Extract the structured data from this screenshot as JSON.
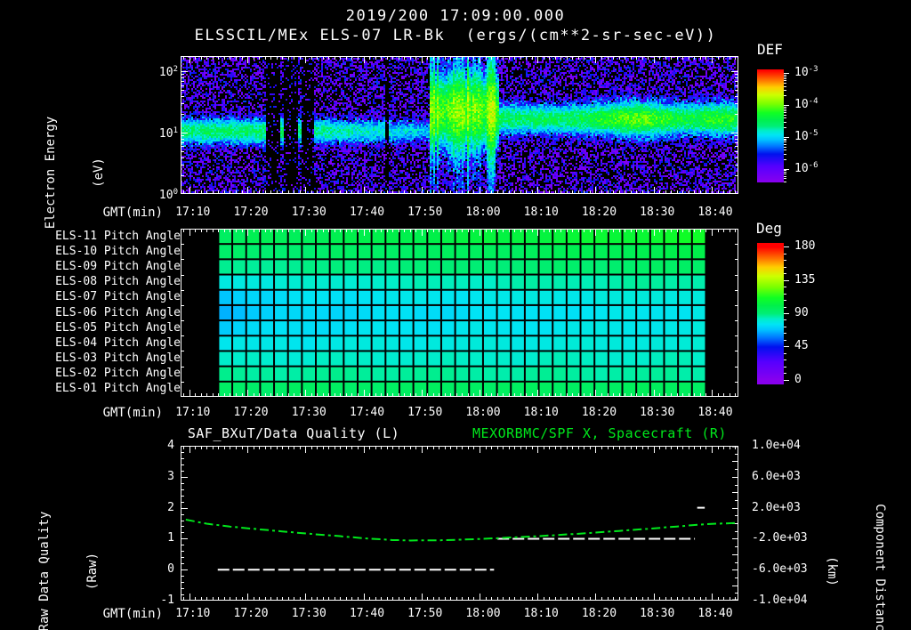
{
  "title": {
    "line1": "2019/200 17:09:00.000",
    "line2": "ELSSCIL/MEx ELS-07 LR-Bk  (ergs/(cm**2-sr-sec-eV))"
  },
  "colors": {
    "background": "#000000",
    "text": "#ffffff",
    "accent_green": "#00e81c",
    "colormap_stops": [
      [
        0.0,
        "#8800ee"
      ],
      [
        0.14,
        "#5500ff"
      ],
      [
        0.25,
        "#0011ee"
      ],
      [
        0.32,
        "#0077ff"
      ],
      [
        0.38,
        "#00c4ff"
      ],
      [
        0.42,
        "#00e4f4"
      ],
      [
        0.46,
        "#00eec8"
      ],
      [
        0.5,
        "#00ee77"
      ],
      [
        0.56,
        "#00f04a"
      ],
      [
        0.62,
        "#11ff22"
      ],
      [
        0.7,
        "#7aff00"
      ],
      [
        0.78,
        "#ccff00"
      ],
      [
        0.85,
        "#ffcc00"
      ],
      [
        0.91,
        "#ff7700"
      ],
      [
        1.0,
        "#ff0000"
      ]
    ]
  },
  "time_axis": {
    "label": "GMT(min)",
    "start_min": 8.5,
    "end_min": 104.6,
    "minor_step_min": 1,
    "tick_minutes": [
      10,
      20,
      30,
      40,
      50,
      60,
      70,
      80,
      90,
      100
    ],
    "tick_labels": [
      "17:10",
      "17:20",
      "17:30",
      "17:40",
      "17:50",
      "18:00",
      "18:10",
      "18:20",
      "18:30",
      "18:40"
    ]
  },
  "spectrogram_panel": {
    "ylabel_line1": "Electron Energy",
    "ylabel_line2": "(eV)",
    "yticks": [
      {
        "base": "10",
        "exp": "2",
        "log": 2
      },
      {
        "base": "10",
        "exp": "1",
        "log": 1
      },
      {
        "base": "10",
        "exp": "0",
        "log": 0
      }
    ],
    "colorbar_title": "DEF",
    "colorbar_ticks": [
      {
        "base": "10",
        "exp": "-3"
      },
      {
        "base": "10",
        "exp": "-4"
      },
      {
        "base": "10",
        "exp": "-5"
      },
      {
        "base": "10",
        "exp": "-6"
      }
    ]
  },
  "pitch_panel": {
    "colorbar_title": "Deg",
    "colorbar_ticks": [
      "180",
      "135",
      "90",
      "45",
      "0"
    ],
    "colorbar_values": [
      180,
      135,
      90,
      45,
      0
    ]
  },
  "bottom_panel": {
    "title_left": "SAF_BXuT/Data Quality (L)",
    "title_right": "MEXORBMC/SPF X, Spacecraft (R)",
    "ylabel_left_line1": "Raw Data Quality",
    "ylabel_left_line2": "(Raw)",
    "yticks_left": [
      "4",
      "3",
      "2",
      "1",
      "0",
      "-1"
    ],
    "yticks_left_values": [
      4,
      3,
      2,
      1,
      0,
      -1
    ],
    "ylabel_right_line1": "Component Distance",
    "ylabel_right_line2": "(km)",
    "yticks_right": [
      "1.0e+04",
      "6.0e+03",
      "2.0e+03",
      "-2.0e+03",
      "-6.0e+03",
      "-1.0e+04"
    ],
    "yticks_right_values": [
      10000,
      6000,
      2000,
      -2000,
      -6000,
      -10000
    ]
  },
  "chart_data": [
    {
      "type": "heatmap",
      "id": "electron_energy_spectrogram",
      "title": "ELSSCIL/MEx ELS-07 LR-Bk",
      "units": "ergs/(cm**2-sr-sec-eV)",
      "x_axis": {
        "label": "GMT(min)",
        "range_min": [
          8.5,
          104.6
        ]
      },
      "y_axis": {
        "label": "Electron Energy (eV)",
        "scale": "log",
        "range_eV": [
          1,
          178
        ]
      },
      "color_axis": {
        "label": "DEF",
        "range": [
          1e-06,
          0.001
        ]
      },
      "bands": [
        {
          "name": "low_energy_band",
          "t_range_min": [
            8.5,
            64
          ],
          "logE_center": 1.02,
          "logE_sigma": 0.23,
          "peak_log10_def": -4.55,
          "fade_to": -5.7
        },
        {
          "name": "injection_blob",
          "t_range_min": [
            51.5,
            63.5
          ],
          "logE_center": 1.35,
          "logE_sigma": 0.55,
          "peak_log10_def": -3.95
        },
        {
          "name": "main_band",
          "t_range_min": [
            63,
            104.6
          ],
          "logE_center": 1.22,
          "logE_sigma": 0.26,
          "base_log10_def": -4.5,
          "bright_t_center": 87,
          "bright_boost": 0.45,
          "edge_t_center": 101.5,
          "edge_boost": 0.3
        }
      ],
      "gaps_min": [
        [
          23.1,
          25.6
        ],
        [
          26.2,
          28.6
        ],
        [
          29.3,
          31.4
        ],
        [
          43.9,
          44.5
        ]
      ],
      "background_log10_def": [
        -6.4,
        -5.8
      ]
    },
    {
      "type": "heatmap",
      "id": "pitch_angle_panel",
      "color_axis": {
        "label": "Deg",
        "range": [
          0,
          180
        ]
      },
      "data_start_min": 15,
      "data_end_min": 99,
      "columns": 35,
      "rows": [
        {
          "label": "ELS-11 Pitch Angle",
          "start_deg": 96,
          "end_deg": 109
        },
        {
          "label": "ELS-10 Pitch Angle",
          "start_deg": 92,
          "end_deg": 100
        },
        {
          "label": "ELS-09 Pitch Angle",
          "start_deg": 87,
          "end_deg": 94
        },
        {
          "label": "ELS-08 Pitch Angle",
          "start_deg": 80,
          "end_deg": 87
        },
        {
          "label": "ELS-07 Pitch Angle",
          "start_deg": 74,
          "end_deg": 80
        },
        {
          "label": "ELS-06 Pitch Angle",
          "start_deg": 72,
          "end_deg": 77
        },
        {
          "label": "ELS-05 Pitch Angle",
          "start_deg": 74,
          "end_deg": 78
        },
        {
          "label": "ELS-04 Pitch Angle",
          "start_deg": 78,
          "end_deg": 80
        },
        {
          "label": "ELS-03 Pitch Angle",
          "start_deg": 82,
          "end_deg": 83
        },
        {
          "label": "ELS-02 Pitch Angle",
          "start_deg": 87,
          "end_deg": 86
        },
        {
          "label": "ELS-01 Pitch Angle",
          "start_deg": 94,
          "end_deg": 96
        }
      ]
    },
    {
      "type": "line",
      "id": "quality_and_spacecraft_distance",
      "left_axis": {
        "label": "Raw Data Quality (Raw)",
        "range": [
          -1,
          4
        ]
      },
      "right_axis": {
        "label": "Component Distance (km)",
        "range": [
          -10000,
          10000
        ]
      },
      "series": [
        {
          "name": "SAF_BXuT/Data Quality",
          "axis": "left",
          "color": "#ffffff",
          "dash": [
            13,
            4
          ],
          "width": 2,
          "segments": [
            {
              "value": 0,
              "start_min": 14.9,
              "end_min": 62.5
            },
            {
              "value": 1,
              "start_min": 63.1,
              "end_min": 97.1
            },
            {
              "value": 2,
              "start_min": 97.5,
              "end_min": 98.8
            }
          ]
        },
        {
          "name": "MEXORBMC/SPF X, Spacecraft",
          "axis": "right",
          "color": "#00e81c",
          "dash": [
            10,
            4,
            3,
            4
          ],
          "width": 2,
          "points_min_km": [
            [
              9.4,
              460
            ],
            [
              13,
              -60
            ],
            [
              17,
              -430
            ],
            [
              21,
              -720
            ],
            [
              26,
              -1060
            ],
            [
              31,
              -1380
            ],
            [
              36,
              -1680
            ],
            [
              41,
              -2000
            ],
            [
              45,
              -2170
            ],
            [
              48,
              -2230
            ],
            [
              52,
              -2220
            ],
            [
              56,
              -2150
            ],
            [
              60,
              -2040
            ],
            [
              64,
              -1900
            ],
            [
              69,
              -1720
            ],
            [
              74,
              -1500
            ],
            [
              79,
              -1260
            ],
            [
              84,
              -1000
            ],
            [
              89,
              -730
            ],
            [
              94,
              -420
            ],
            [
              99,
              -120
            ],
            [
              104.6,
              50
            ]
          ]
        }
      ]
    }
  ]
}
